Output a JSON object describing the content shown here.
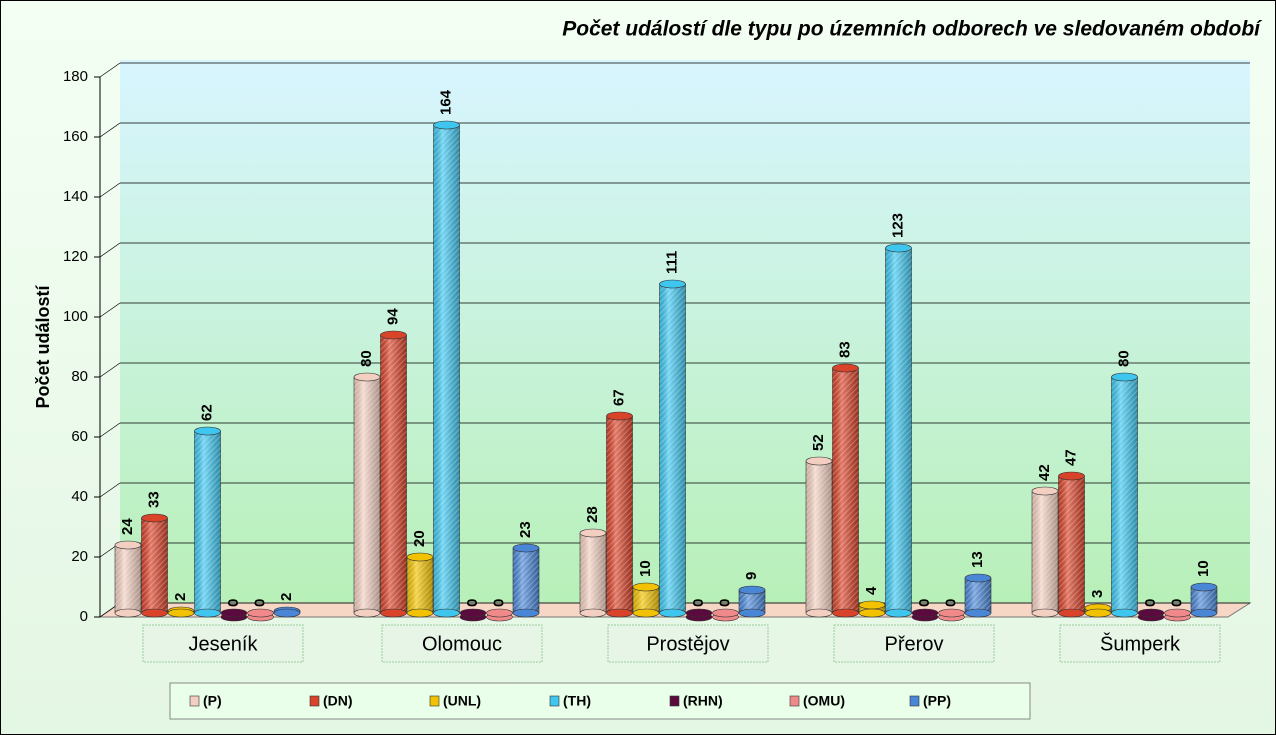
{
  "chart_data": {
    "type": "bar",
    "title": "Počet událostí dle typu po územních odborech ve sledovaném období",
    "y_label": "Počet událostí",
    "categories": [
      "Jeseník",
      "Olomouc",
      "Prostějov",
      "Přerov",
      "Šumperk"
    ],
    "series": [
      {
        "name": "(P)",
        "color": "#f2cfc0",
        "values": [
          24,
          80,
          28,
          52,
          42
        ]
      },
      {
        "name": "(DN)",
        "color": "#d8432a",
        "values": [
          33,
          94,
          67,
          83,
          47
        ]
      },
      {
        "name": "(UNL)",
        "color": "#f2c200",
        "values": [
          2,
          20,
          10,
          4,
          3
        ]
      },
      {
        "name": "(TH)",
        "color": "#3ec6ef",
        "values": [
          62,
          164,
          111,
          123,
          80
        ]
      },
      {
        "name": "(RHN)",
        "color": "#5a0a3c",
        "values": [
          0,
          0,
          0,
          0,
          0
        ]
      },
      {
        "name": "(OMU)",
        "color": "#f08a8a",
        "values": [
          0,
          0,
          0,
          0,
          0
        ]
      },
      {
        "name": "(PP)",
        "color": "#4a86d6",
        "values": [
          2,
          23,
          9,
          13,
          10
        ]
      }
    ],
    "ylim": [
      0,
      180
    ],
    "yticks": [
      0,
      20,
      40,
      60,
      80,
      100,
      120,
      140,
      160,
      180
    ],
    "grid": true
  }
}
